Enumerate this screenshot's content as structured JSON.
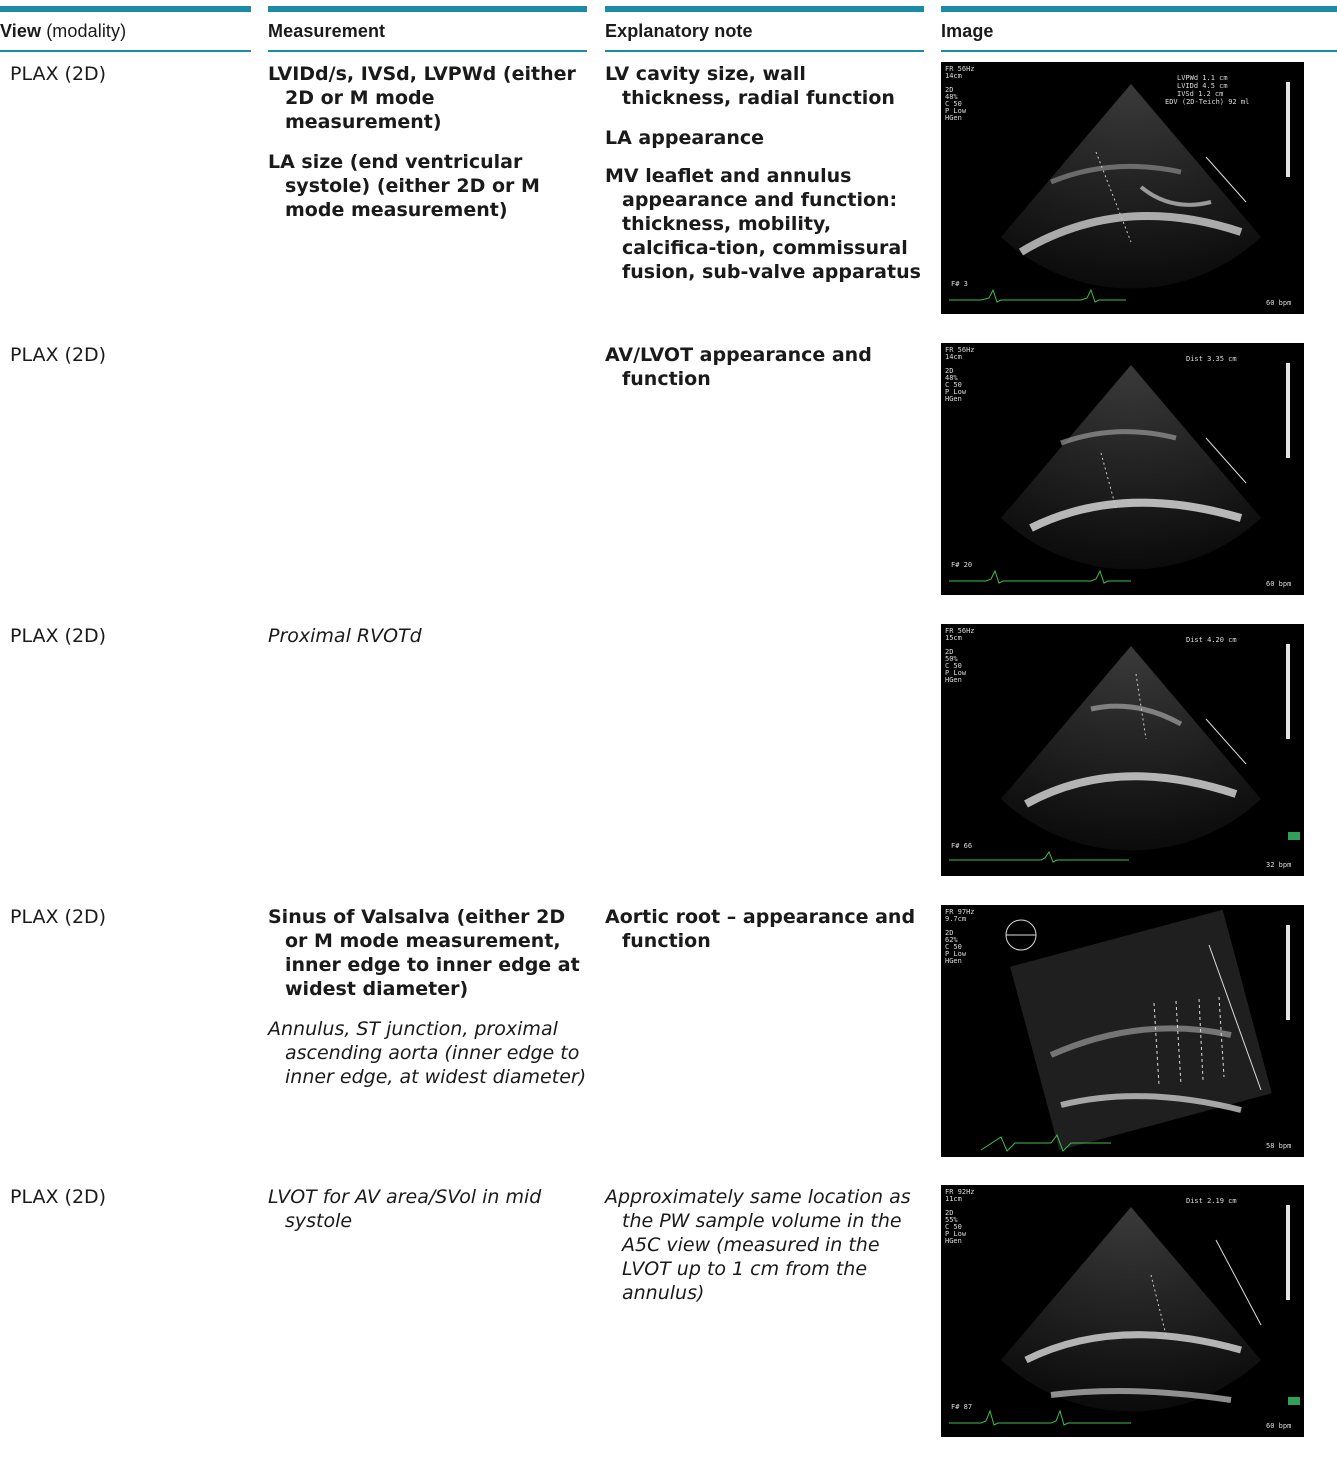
{
  "headers": {
    "view": "View",
    "view_suffix": "(modality)",
    "measurement": "Measurement",
    "note": "Explanatory note",
    "image": "Image"
  },
  "rows": [
    {
      "view": "PLAX (2D)",
      "measurement": [
        "LVIDd/s, IVSd, LVPWd (either 2D or M mode measurement)",
        "LA size (end ventricular systole) (either 2D or M mode measurement)"
      ],
      "note": [
        "LV cavity size, wall thickness, radial function",
        "LA appearance",
        "MV leaflet and annulus appearance and function: thickness, mobility, calcifica-tion, commissural fusion, sub-valve apparatus"
      ],
      "image": {
        "fr": "FR 56Hz",
        "depth": "14cm",
        "settings": [
          "2D",
          "48%",
          "C 50",
          "P Low",
          "HGen"
        ],
        "meas": [
          "LVPWd   1.1 cm",
          "LVIDd   4.5 cm",
          "IVSd   1.2 cm",
          "EDV (2D-Teich) 92 ml"
        ],
        "frame": "F# 3",
        "hr": "60 bpm"
      }
    },
    {
      "view": "PLAX (2D)",
      "measurement": [],
      "note": [
        "AV/LVOT appearance and function"
      ],
      "image": {
        "fr": "FR 56Hz",
        "depth": "14cm",
        "settings": [
          "2D",
          "48%",
          "C 50",
          "P Low",
          "HGen"
        ],
        "meas": [
          "Dist  3.35 cm"
        ],
        "frame": "F# 20",
        "hr": "60 bpm"
      }
    },
    {
      "view": "PLAX (2D)",
      "measurement_italic": [
        "Proximal RVOTd"
      ],
      "note": [],
      "image": {
        "fr": "FR 56Hz",
        "depth": "15cm",
        "settings": [
          "2D",
          "50%",
          "C 50",
          "P Low",
          "HGen"
        ],
        "meas": [
          "Dist  4.20 cm"
        ],
        "frame": "F# 66",
        "hr": "32 bpm"
      }
    },
    {
      "view": "PLAX (2D)",
      "measurement": [
        "Sinus of Valsalva (either 2D or M mode measurement, inner edge to inner edge at widest diameter)"
      ],
      "measurement_italic": [
        "Annulus, ST junction, proximal ascending aorta (inner edge to inner edge, at widest diameter)"
      ],
      "note": [
        "Aortic root – appearance and function"
      ],
      "image": {
        "fr": "FR 97Hz",
        "depth": "9.7cm",
        "settings": [
          "2D",
          "62%",
          "C 50",
          "P Low",
          "HGen"
        ],
        "meas": [],
        "frame": "",
        "hr": "58 bpm"
      }
    },
    {
      "view": "PLAX (2D)",
      "measurement_italic": [
        "LVOT for AV area/SVol in mid systole"
      ],
      "note_italic": [
        "Approximately same location as the PW sample volume in the A5C view (measured in the LVOT up to 1 cm from the annulus)"
      ],
      "image": {
        "fr": "FR 92Hz",
        "depth": "11cm",
        "settings": [
          "2D",
          "55%",
          "C 50",
          "P Low",
          "HGen"
        ],
        "meas": [
          "Dist  2.19 cm"
        ],
        "frame": "F# 87",
        "hr": "60 bpm"
      }
    }
  ]
}
